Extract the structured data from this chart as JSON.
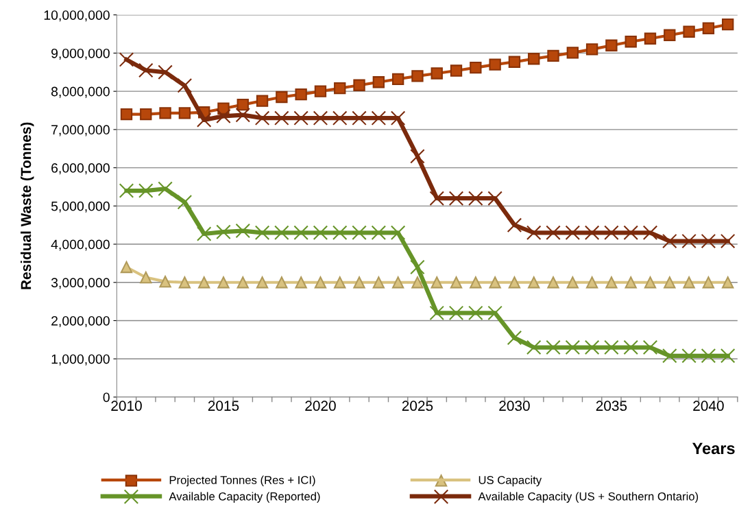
{
  "chart_data": {
    "type": "line",
    "xlabel": "Years",
    "ylabel": "Residual Waste (Tonnes)",
    "categories": [
      "2010",
      null,
      null,
      null,
      null,
      "2015",
      null,
      null,
      null,
      null,
      "2020",
      null,
      null,
      null,
      null,
      "2025",
      null,
      null,
      null,
      null,
      "2030",
      null,
      null,
      null,
      null,
      "2035",
      null,
      null,
      null,
      null,
      "2040",
      null
    ],
    "series": [
      {
        "name": "Projected Tonnes (Res + ICI)",
        "color": "#b7470b",
        "marker": "square",
        "values": [
          7400000,
          7400000,
          7430000,
          7430000,
          7450000,
          7550000,
          7650000,
          7750000,
          7850000,
          7920000,
          8000000,
          8080000,
          8160000,
          8240000,
          8320000,
          8400000,
          8470000,
          8540000,
          8620000,
          8700000,
          8770000,
          8850000,
          8930000,
          9010000,
          9100000,
          9200000,
          9300000,
          9380000,
          9470000,
          9560000,
          9650000,
          9750000
        ]
      },
      {
        "name": "US Capacity",
        "color": "#d9c27f",
        "marker": "triangle",
        "values": [
          3400000,
          3130000,
          3020000,
          3000000,
          3000000,
          3000000,
          3000000,
          3000000,
          3000000,
          3000000,
          3000000,
          3000000,
          3000000,
          3000000,
          3000000,
          3000000,
          3000000,
          3000000,
          3000000,
          3000000,
          3000000,
          3000000,
          3000000,
          3000000,
          3000000,
          3000000,
          3000000,
          3000000,
          3000000,
          3000000,
          3000000,
          3000000
        ]
      },
      {
        "name": "Available Capacity (Reported)",
        "color": "#669428",
        "marker": "cross",
        "values": [
          5400000,
          5400000,
          5450000,
          5100000,
          4270000,
          4320000,
          4350000,
          4300000,
          4300000,
          4300000,
          4300000,
          4300000,
          4300000,
          4300000,
          4300000,
          3400000,
          2200000,
          2200000,
          2200000,
          2200000,
          1550000,
          1300000,
          1300000,
          1300000,
          1300000,
          1300000,
          1300000,
          1300000,
          1080000,
          1080000,
          1080000,
          1080000
        ]
      },
      {
        "name": "Available Capacity (US + Southern Ontario)",
        "color": "#7b2a0c",
        "marker": "cross",
        "values": [
          8830000,
          8550000,
          8500000,
          8150000,
          7250000,
          7350000,
          7380000,
          7300000,
          7300000,
          7300000,
          7300000,
          7300000,
          7300000,
          7300000,
          7300000,
          6300000,
          5200000,
          5200000,
          5200000,
          5200000,
          4500000,
          4300000,
          4300000,
          4300000,
          4300000,
          4300000,
          4300000,
          4300000,
          4080000,
          4080000,
          4080000,
          4080000
        ]
      }
    ],
    "ylim": [
      0,
      10000000
    ],
    "yticks": [
      {
        "value": 0,
        "label": "0"
      },
      {
        "value": 1000000,
        "label": "1,000,000"
      },
      {
        "value": 2000000,
        "label": "2,000,000"
      },
      {
        "value": 3000000,
        "label": "3,000,000"
      },
      {
        "value": 4000000,
        "label": "4,000,000"
      },
      {
        "value": 5000000,
        "label": "5,000,000"
      },
      {
        "value": 6000000,
        "label": "6,000,000"
      },
      {
        "value": 7000000,
        "label": "7,000,000"
      },
      {
        "value": 8000000,
        "label": "8,000,000"
      },
      {
        "value": 9000000,
        "label": "9,000,000"
      },
      {
        "value": 10000000,
        "label": "10,000,000"
      }
    ],
    "grid": "y",
    "legend": "bottom"
  }
}
